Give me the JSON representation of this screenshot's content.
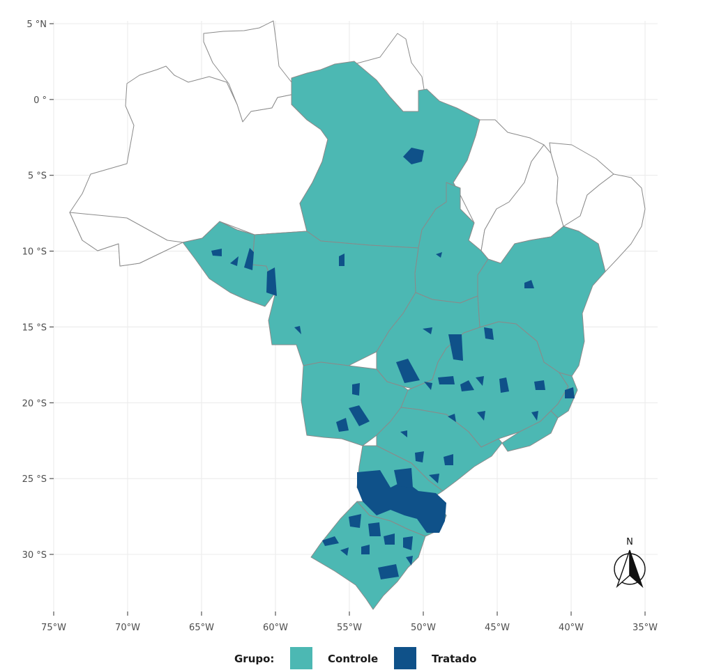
{
  "map": {
    "lon_range": [
      -75,
      -35
    ],
    "lat_range": [
      -33.5,
      5
    ],
    "x_ticks": [
      {
        "lon": -75,
        "label": "75°W"
      },
      {
        "lon": -70,
        "label": "70°W"
      },
      {
        "lon": -65,
        "label": "65°W"
      },
      {
        "lon": -60,
        "label": "60°W"
      },
      {
        "lon": -55,
        "label": "55°W"
      },
      {
        "lon": -50,
        "label": "50°W"
      },
      {
        "lon": -45,
        "label": "45°W"
      },
      {
        "lon": -40,
        "label": "40°W"
      },
      {
        "lon": -35,
        "label": "35°W"
      }
    ],
    "y_ticks": [
      {
        "lat": 5,
        "label": "5 °N"
      },
      {
        "lat": 0,
        "label": "0 °"
      },
      {
        "lat": -5,
        "label": "5 °S"
      },
      {
        "lat": -10,
        "label": "10 °S"
      },
      {
        "lat": -15,
        "label": "15 °S"
      },
      {
        "lat": -20,
        "label": "20 °S"
      },
      {
        "lat": -25,
        "label": "25 °S"
      },
      {
        "lat": -30,
        "label": "30 °S"
      }
    ],
    "grid": true,
    "colors": {
      "controle": "#4cb8b3",
      "tratado": "#0f5189",
      "border": "#8a8a8a",
      "not_in_sample": "#ffffff",
      "grid": "#ebebeb"
    },
    "north_arrow": {
      "label": "N",
      "placement": "bottom-right"
    }
  },
  "legend": {
    "title": "Grupo:",
    "placement": "bottom",
    "items": [
      {
        "label": "Controle",
        "color": "#4cb8b3"
      },
      {
        "label": "Tratado",
        "color": "#0f5189"
      }
    ]
  }
}
